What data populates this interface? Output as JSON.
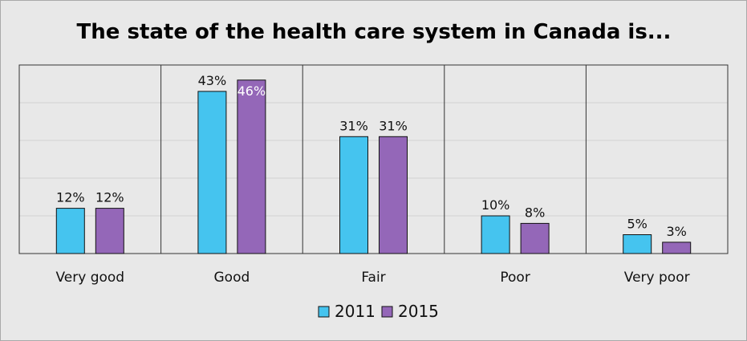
{
  "chart_data": {
    "type": "bar",
    "title": "The state of the health care system in Canada is...",
    "categories": [
      "Very good",
      "Good",
      "Fair",
      "Poor",
      "Very poor"
    ],
    "series": [
      {
        "name": "2011",
        "values": [
          12,
          43,
          31,
          10,
          5
        ],
        "labels": [
          "12%",
          "43%",
          "31%",
          "10%",
          "5%"
        ],
        "color": "#45c4ef"
      },
      {
        "name": "2015",
        "values": [
          12,
          46,
          31,
          8,
          3
        ],
        "labels": [
          "12%",
          "46%",
          "31%",
          "8%",
          "3%"
        ],
        "color": "#9467b8"
      }
    ],
    "ylim": [
      0,
      50
    ],
    "grid": true,
    "legend_position": "bottom"
  },
  "colors": {
    "background": "#e8e8e8",
    "plot_border": "#333333",
    "gridline": "#d2d2d2",
    "bar_outline": "#111111"
  }
}
